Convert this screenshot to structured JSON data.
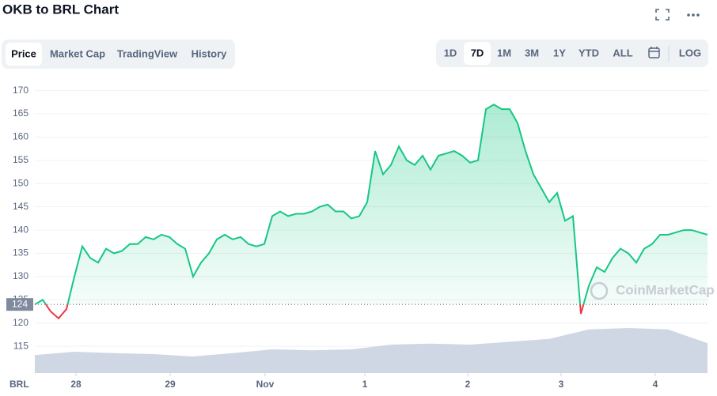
{
  "header": {
    "title": "OKB to BRL Chart"
  },
  "tabs": [
    "Price",
    "Market Cap",
    "TradingView",
    "History"
  ],
  "active_tab": 0,
  "ranges": [
    "1D",
    "7D",
    "1M",
    "3M",
    "1Y",
    "YTD",
    "ALL"
  ],
  "active_range": 1,
  "scale_button": "LOG",
  "chart_data": {
    "type": "area",
    "watermark": "CoinMarketCap",
    "currency_label": "BRL",
    "xlim": [
      0,
      85
    ],
    "xticks": [
      {
        "value": 5.2,
        "label": "28"
      },
      {
        "value": 17.1,
        "label": "29"
      },
      {
        "value": 29.1,
        "label": "Nov"
      },
      {
        "value": 41.7,
        "label": "1"
      },
      {
        "value": 54.7,
        "label": "2"
      },
      {
        "value": 66.5,
        "label": "3"
      },
      {
        "value": 78.4,
        "label": "4"
      }
    ],
    "ylim": [
      114,
      173
    ],
    "yticks": [
      115,
      120,
      125,
      130,
      135,
      140,
      145,
      150,
      155,
      160,
      165,
      170
    ],
    "grid": true,
    "reference": 124,
    "series": [
      {
        "name": "Price",
        "color": "#16c784",
        "below_color": "#ea3943",
        "values": [
          124,
          125,
          122.5,
          121,
          123,
          130,
          136.5,
          134,
          133,
          136,
          135,
          135.5,
          137,
          137,
          138.5,
          138,
          139,
          138.5,
          137,
          136,
          130,
          133,
          135,
          138,
          139,
          138,
          138.5,
          137,
          136.5,
          137,
          143,
          144,
          143,
          143.5,
          143.5,
          144,
          145,
          145.5,
          144,
          144,
          142.5,
          143,
          146,
          157,
          152,
          154,
          158,
          155,
          154,
          156,
          153,
          156,
          156.5,
          157,
          156,
          154.5,
          155,
          166,
          167,
          166,
          166,
          163,
          157,
          152,
          149,
          146,
          148,
          142,
          143,
          122,
          128,
          132,
          131,
          134,
          136,
          135,
          133,
          136,
          137,
          139,
          139,
          139.5,
          140,
          140,
          139.5,
          139
        ]
      },
      {
        "name": "Volume",
        "color": "#cfd6e4",
        "axis": "y2",
        "values": [
          38,
          45,
          42,
          40,
          35,
          42,
          50,
          48,
          50,
          60,
          62,
          60,
          66,
          72,
          92,
          95,
          92,
          63
        ]
      }
    ],
    "y2lim": [
      0,
      100
    ]
  }
}
